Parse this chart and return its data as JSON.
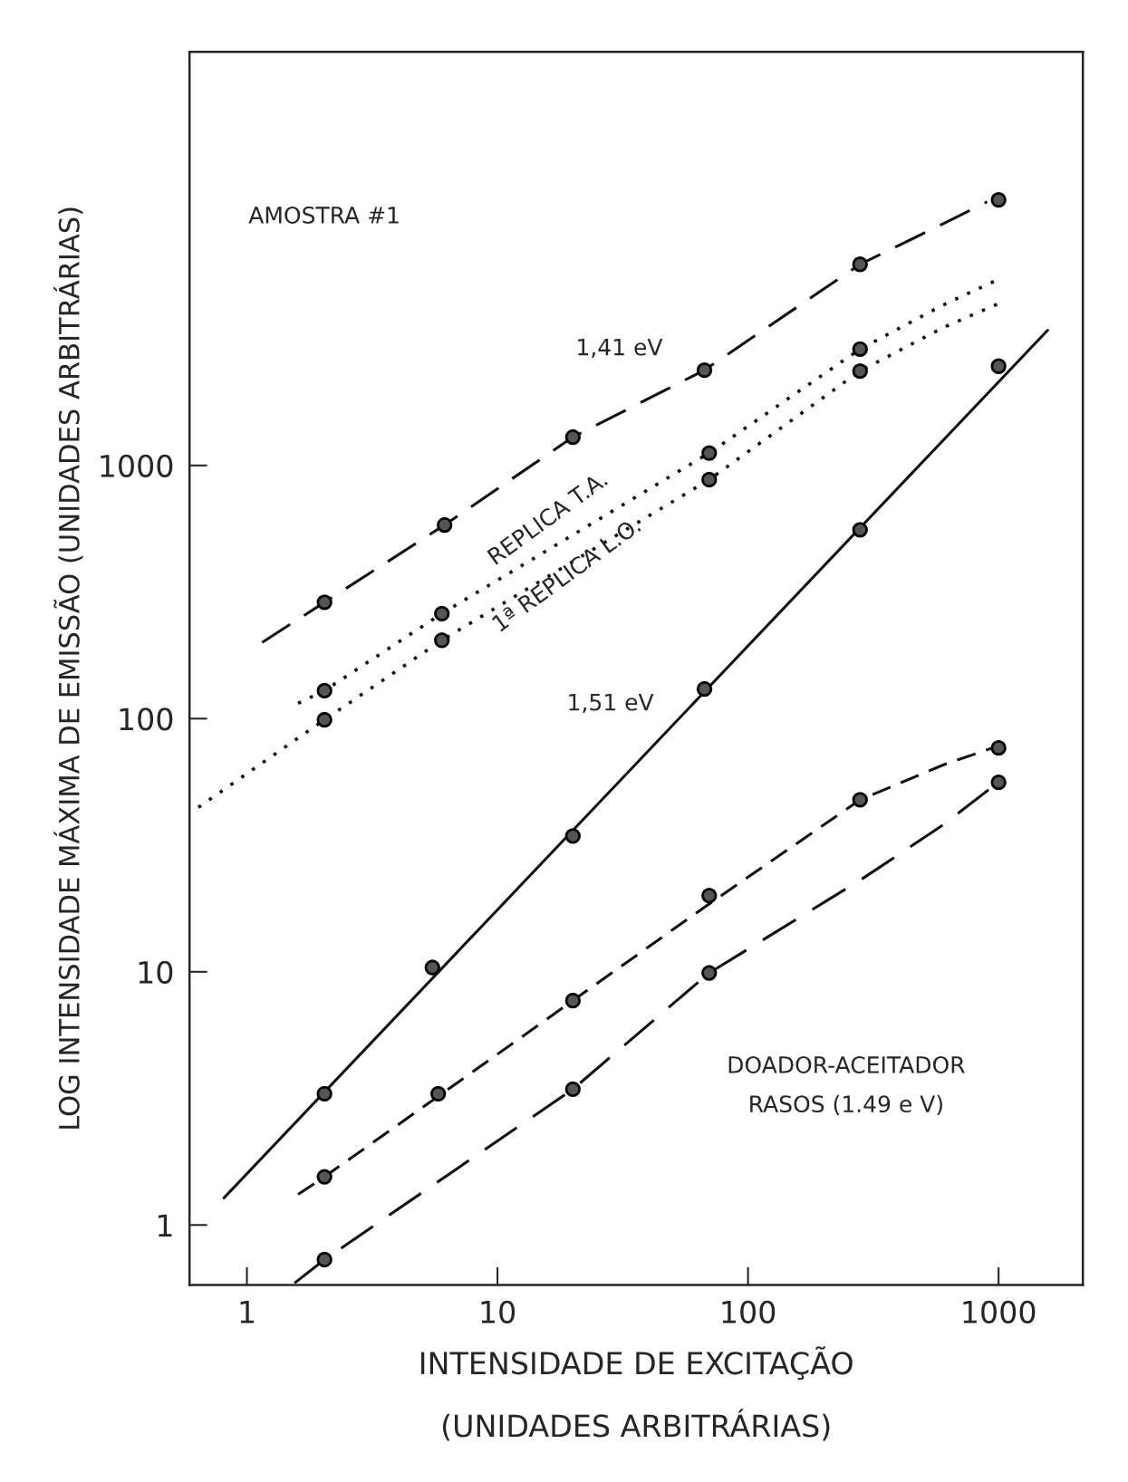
{
  "chart_data": {
    "type": "line",
    "xlabel": "INTENSIDADE DE EXCITAÇÃO\n(UNIDADES ARBITRÁRIAS)",
    "ylabel": "LOG INTENSIDADE MÁXIMA DE EMISSÃO (UNIDADES ARBITRÁRIAS)",
    "log": "xy",
    "grid": false,
    "legend": false,
    "xlim": [
      0.59,
      2170
    ],
    "ylim": [
      0.58,
      43000
    ],
    "xticks": [
      1,
      10,
      100,
      1000
    ],
    "yticks": [
      1,
      10,
      100,
      1000
    ],
    "series": [
      {
        "line_style": "dashed",
        "color": "#111111",
        "x": [
          1.15,
          2.04,
          6.15,
          20,
          67,
          280,
          600,
          900
        ],
        "values": [
          200,
          288,
          582,
          1294,
          2380,
          6230,
          9000,
          11000
        ]
      },
      {
        "line_style": "dotted",
        "color": "#111111",
        "x": [
          1.6,
          2.04,
          6.0,
          70,
          280,
          600,
          1018
        ],
        "values": [
          115,
          129,
          260,
          1120,
          2880,
          4300,
          5480
        ]
      },
      {
        "line_style": "dotted",
        "color": "#111111",
        "x": [
          0.64,
          2.04,
          6.0,
          70,
          280,
          600,
          1035
        ],
        "values": [
          44.6,
          99,
          204,
          879,
          2360,
          3500,
          4420
        ]
      },
      {
        "line_style": "solid",
        "color": "#111111",
        "x": [
          0.81,
          1570
        ],
        "values": [
          1.28,
          3420
        ]
      },
      {
        "line_style": "dashed",
        "color": "#111111",
        "x": [
          1.6,
          2.04,
          6.0,
          20,
          67,
          280,
          600,
          996
        ],
        "values": [
          1.32,
          1.55,
          3.3,
          7.7,
          18,
          47.8,
          65.6,
          78
        ]
      },
      {
        "line_style": "dashed",
        "color": "#111111",
        "x": [
          1.55,
          2.04,
          20,
          70,
          280,
          600,
          996
        ],
        "values": [
          0.59,
          0.73,
          3.44,
          9.9,
          23,
          38,
          56
        ]
      },
      {
        "type": "scatter",
        "marker": "circle",
        "color": "#555555",
        "x": [
          2.04,
          6.15,
          20,
          67,
          280,
          1000
        ],
        "values": [
          288,
          582,
          1294,
          2380,
          6230,
          11200
        ]
      },
      {
        "type": "scatter",
        "marker": "circle",
        "color": "#555555",
        "x": [
          2.04,
          6.0,
          70,
          280
        ],
        "values": [
          129,
          260,
          1120,
          2880
        ]
      },
      {
        "type": "scatter",
        "marker": "circle",
        "color": "#555555",
        "x": [
          2.04,
          6.0,
          70,
          280
        ],
        "values": [
          99,
          204,
          879,
          2360
        ]
      },
      {
        "type": "scatter",
        "marker": "circle",
        "color": "#555555",
        "x": [
          2.04,
          5.5,
          20,
          67,
          280,
          1000
        ],
        "values": [
          3.3,
          10.4,
          34.4,
          131,
          557,
          2466
        ]
      },
      {
        "type": "scatter",
        "marker": "circle",
        "color": "#555555",
        "x": [
          2.04,
          5.8,
          20,
          70,
          280,
          1000
        ],
        "values": [
          1.55,
          3.3,
          7.7,
          20,
          47.8,
          76.6
        ]
      },
      {
        "type": "scatter",
        "marker": "circle",
        "color": "#555555",
        "x": [
          2.04,
          20,
          70,
          1000
        ],
        "values": [
          0.73,
          3.44,
          9.9,
          56
        ]
      }
    ],
    "annotations": [
      "AMOSTRA #1",
      "1,41 eV",
      "REPLICA T.A.",
      "1ª REPLICA L.O.",
      "1,51 eV",
      "DOADOR-ACEITADOR\nRASOS (1.49 e V)"
    ]
  }
}
